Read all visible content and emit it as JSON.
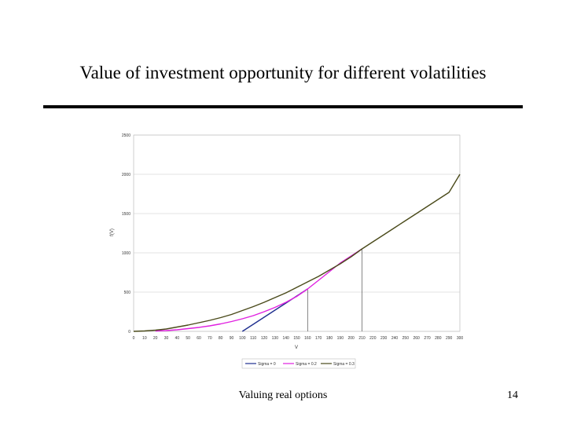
{
  "slide": {
    "title": "Value of investment opportunity for different volatilities",
    "footer": "Valuing real options",
    "page_number": "14"
  },
  "chart_data": {
    "type": "line",
    "title": "",
    "xlabel": "V",
    "ylabel": "f(V)",
    "xlim": [
      0,
      300
    ],
    "ylim": [
      0,
      2500
    ],
    "x_ticks": [
      0,
      10,
      20,
      30,
      40,
      50,
      60,
      70,
      80,
      90,
      100,
      110,
      120,
      130,
      140,
      150,
      160,
      170,
      180,
      190,
      200,
      210,
      220,
      230,
      240,
      250,
      260,
      270,
      280,
      290,
      300
    ],
    "y_ticks": [
      0,
      500,
      1000,
      1500,
      2000,
      2500
    ],
    "grid": "horizontal",
    "legend_position": "bottom",
    "series": [
      {
        "name": "Sigma = 0",
        "color": "#1f2f8f",
        "x": [
          100,
          110,
          120,
          130,
          140,
          150,
          160
        ],
        "y": [
          0,
          90,
          180,
          270,
          360,
          450,
          540
        ]
      },
      {
        "name": "Sigma = 0.2",
        "color": "#e020e0",
        "x": [
          20,
          30,
          40,
          50,
          60,
          70,
          80,
          90,
          100,
          110,
          120,
          130,
          140,
          150,
          160,
          170,
          180,
          190,
          200,
          210
        ],
        "y": [
          5,
          10,
          20,
          35,
          50,
          70,
          95,
          125,
          160,
          200,
          250,
          305,
          370,
          445,
          540,
          650,
          760,
          870,
          960,
          1050
        ]
      },
      {
        "name": "Sigma = 0.3",
        "color": "#4a4a1a",
        "x": [
          0,
          10,
          20,
          30,
          40,
          50,
          60,
          70,
          80,
          90,
          100,
          110,
          120,
          130,
          140,
          150,
          160,
          170,
          180,
          190,
          200,
          210,
          220,
          230,
          240,
          250,
          260,
          270,
          280,
          290,
          300
        ],
        "y": [
          0,
          5,
          15,
          30,
          55,
          80,
          110,
          140,
          175,
          215,
          265,
          315,
          370,
          430,
          490,
          560,
          630,
          700,
          780,
          860,
          950,
          1050,
          1140,
          1230,
          1320,
          1410,
          1500,
          1590,
          1680,
          1770,
          2000
        ]
      }
    ],
    "reference_lines": [
      {
        "x": 160,
        "y": 540
      },
      {
        "x": 210,
        "y": 1050
      }
    ]
  }
}
